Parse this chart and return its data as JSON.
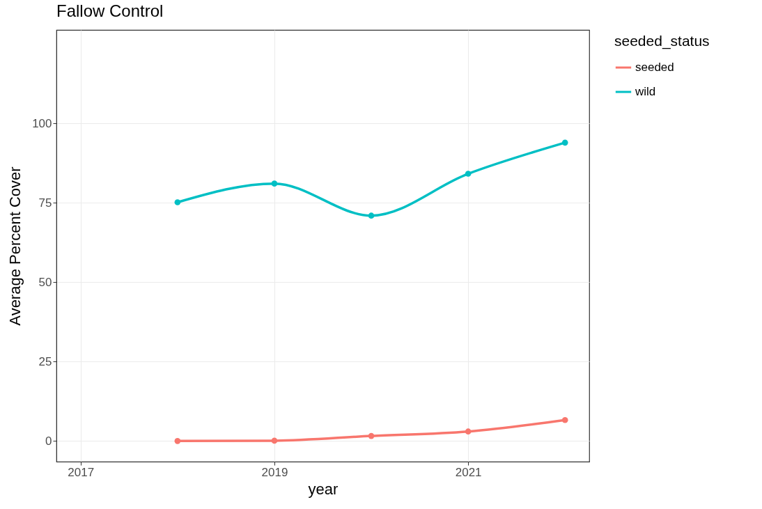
{
  "chart_data": {
    "type": "line",
    "title": "Fallow Control",
    "xlabel": "year",
    "ylabel": "Average Percent Cover",
    "legend_title": "seeded_status",
    "x": [
      2018,
      2019,
      2020,
      2021,
      2022
    ],
    "series": [
      {
        "name": "seeded",
        "color": "#f8766d",
        "values": [
          0,
          0.1,
          1.6,
          3.0,
          6.6
        ]
      },
      {
        "name": "wild",
        "color": "#00bfc4",
        "values": [
          75.2,
          81.1,
          71.0,
          84.2,
          94.0
        ]
      }
    ],
    "xlim": [
      2016.75,
      2022.25
    ],
    "xticks": [
      2017,
      2019,
      2021
    ],
    "ylim": [
      -6.5,
      129.5
    ],
    "yticks": [
      0,
      25,
      50,
      75,
      100
    ],
    "grid": true,
    "legend": "right",
    "marker": "circle",
    "line_style": "solid"
  }
}
